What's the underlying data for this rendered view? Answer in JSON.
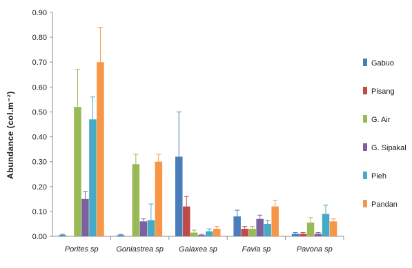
{
  "chart_data": {
    "type": "bar",
    "title": "",
    "xlabel": "",
    "ylabel": "Abundance  (col.m⁻²)",
    "ylim": [
      0,
      0.9
    ],
    "yticks": [
      "0.00",
      "0.10",
      "0.20",
      "0.30",
      "0.40",
      "0.50",
      "0.60",
      "0.70",
      "0.80",
      "0.90"
    ],
    "grid": false,
    "legend_position": "right",
    "categories": [
      "Porites sp",
      "Goniastrea sp",
      "Galaxea sp",
      "Favia sp",
      "Pavona sp"
    ],
    "series": [
      {
        "name": "Gabuo",
        "color": "#4a7ebb",
        "values": [
          0.005,
          0.005,
          0.32,
          0.08,
          0.01
        ],
        "errors": [
          0.003,
          0.003,
          0.18,
          0.025,
          0.005
        ]
      },
      {
        "name": "Pisang",
        "color": "#be4b48",
        "values": [
          0.0,
          0.0,
          0.12,
          0.03,
          0.01
        ],
        "errors": [
          0.0,
          0.0,
          0.04,
          0.01,
          0.005
        ]
      },
      {
        "name": "G. Air",
        "color": "#98b954",
        "values": [
          0.52,
          0.29,
          0.015,
          0.03,
          0.055
        ],
        "errors": [
          0.15,
          0.04,
          0.01,
          0.01,
          0.02
        ]
      },
      {
        "name": "G. Sipakal",
        "color": "#7d60a0",
        "values": [
          0.15,
          0.06,
          0.005,
          0.07,
          0.01
        ],
        "errors": [
          0.03,
          0.01,
          0.003,
          0.015,
          0.005
        ]
      },
      {
        "name": "Pieh",
        "color": "#46aac5",
        "values": [
          0.47,
          0.065,
          0.02,
          0.05,
          0.09
        ],
        "errors": [
          0.09,
          0.065,
          0.01,
          0.015,
          0.035
        ]
      },
      {
        "name": "Pandan",
        "color": "#f79646",
        "values": [
          0.7,
          0.3,
          0.03,
          0.12,
          0.06
        ],
        "errors": [
          0.14,
          0.03,
          0.01,
          0.025,
          0.01
        ]
      }
    ]
  }
}
